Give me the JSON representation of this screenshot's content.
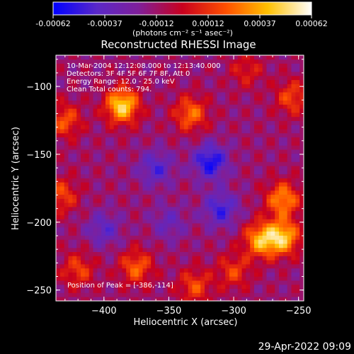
{
  "chart_data": {
    "type": "heatmap",
    "title": "Reconstructed RHESSI Image",
    "xlabel": "Heliocentric X (arcsec)",
    "ylabel": "Heliocentric Y (arcsec)",
    "xlim": [
      -437,
      -246
    ],
    "ylim": [
      -258,
      -77
    ],
    "xticks": [
      -400,
      -350,
      -300,
      -250
    ],
    "yticks": [
      -100,
      -150,
      -200,
      -250
    ],
    "colorbar": {
      "min": -0.00062,
      "max": 0.00062,
      "ticks": [
        "-0.00062",
        "-0.00037",
        "-0.00012",
        "0.00012",
        "0.00037",
        "0.00062"
      ],
      "label": "(photons cm⁻² s⁻¹ asec⁻²)",
      "colors": [
        "#0000ff",
        "#5a28c8",
        "#7f1f9a",
        "#c8001e",
        "#ff5000",
        "#ffc000",
        "#ffffff"
      ]
    },
    "annotations": [
      "10-Mar-2004 12:12:08.000 to 12:13:40.000",
      "Detectors: 3F 4F 5F 6F 7F 8F, Att 0",
      "Energy Range: 12.0 - 25.0 keV",
      "Clean    Total counts: 794."
    ],
    "peak_label": "Position of Peak = [-386,-114]",
    "peak": {
      "x": -386,
      "y": -114
    },
    "sources": [
      {
        "x": -386,
        "y": -114,
        "value": 0.00062
      },
      {
        "x": -262,
        "y": -211,
        "value": 0.00055
      },
      {
        "x": -279,
        "y": -213,
        "value": 0.0005
      },
      {
        "x": -262,
        "y": -183,
        "value": 0.00045
      },
      {
        "x": -333,
        "y": -120,
        "value": 0.00038
      },
      {
        "x": -255,
        "y": -108,
        "value": 0.0003
      },
      {
        "x": -430,
        "y": -125,
        "value": 0.00032
      },
      {
        "x": -433,
        "y": -180,
        "value": 0.0003
      },
      {
        "x": -375,
        "y": -233,
        "value": 0.00035
      },
      {
        "x": -420,
        "y": -235,
        "value": 0.00028
      },
      {
        "x": -330,
        "y": -247,
        "value": 0.0003
      },
      {
        "x": -300,
        "y": -236,
        "value": 0.00027
      },
      {
        "x": -290,
        "y": -88,
        "value": 0.0002
      },
      {
        "x": -318,
        "y": -155,
        "value": -0.00045
      },
      {
        "x": -360,
        "y": -160,
        "value": -0.0003
      },
      {
        "x": -400,
        "y": -205,
        "value": -0.00025
      },
      {
        "x": -310,
        "y": -190,
        "value": -0.00035
      },
      {
        "x": -350,
        "y": -200,
        "value": -0.0002
      }
    ]
  },
  "timestamp": "29-Apr-2022 09:09"
}
